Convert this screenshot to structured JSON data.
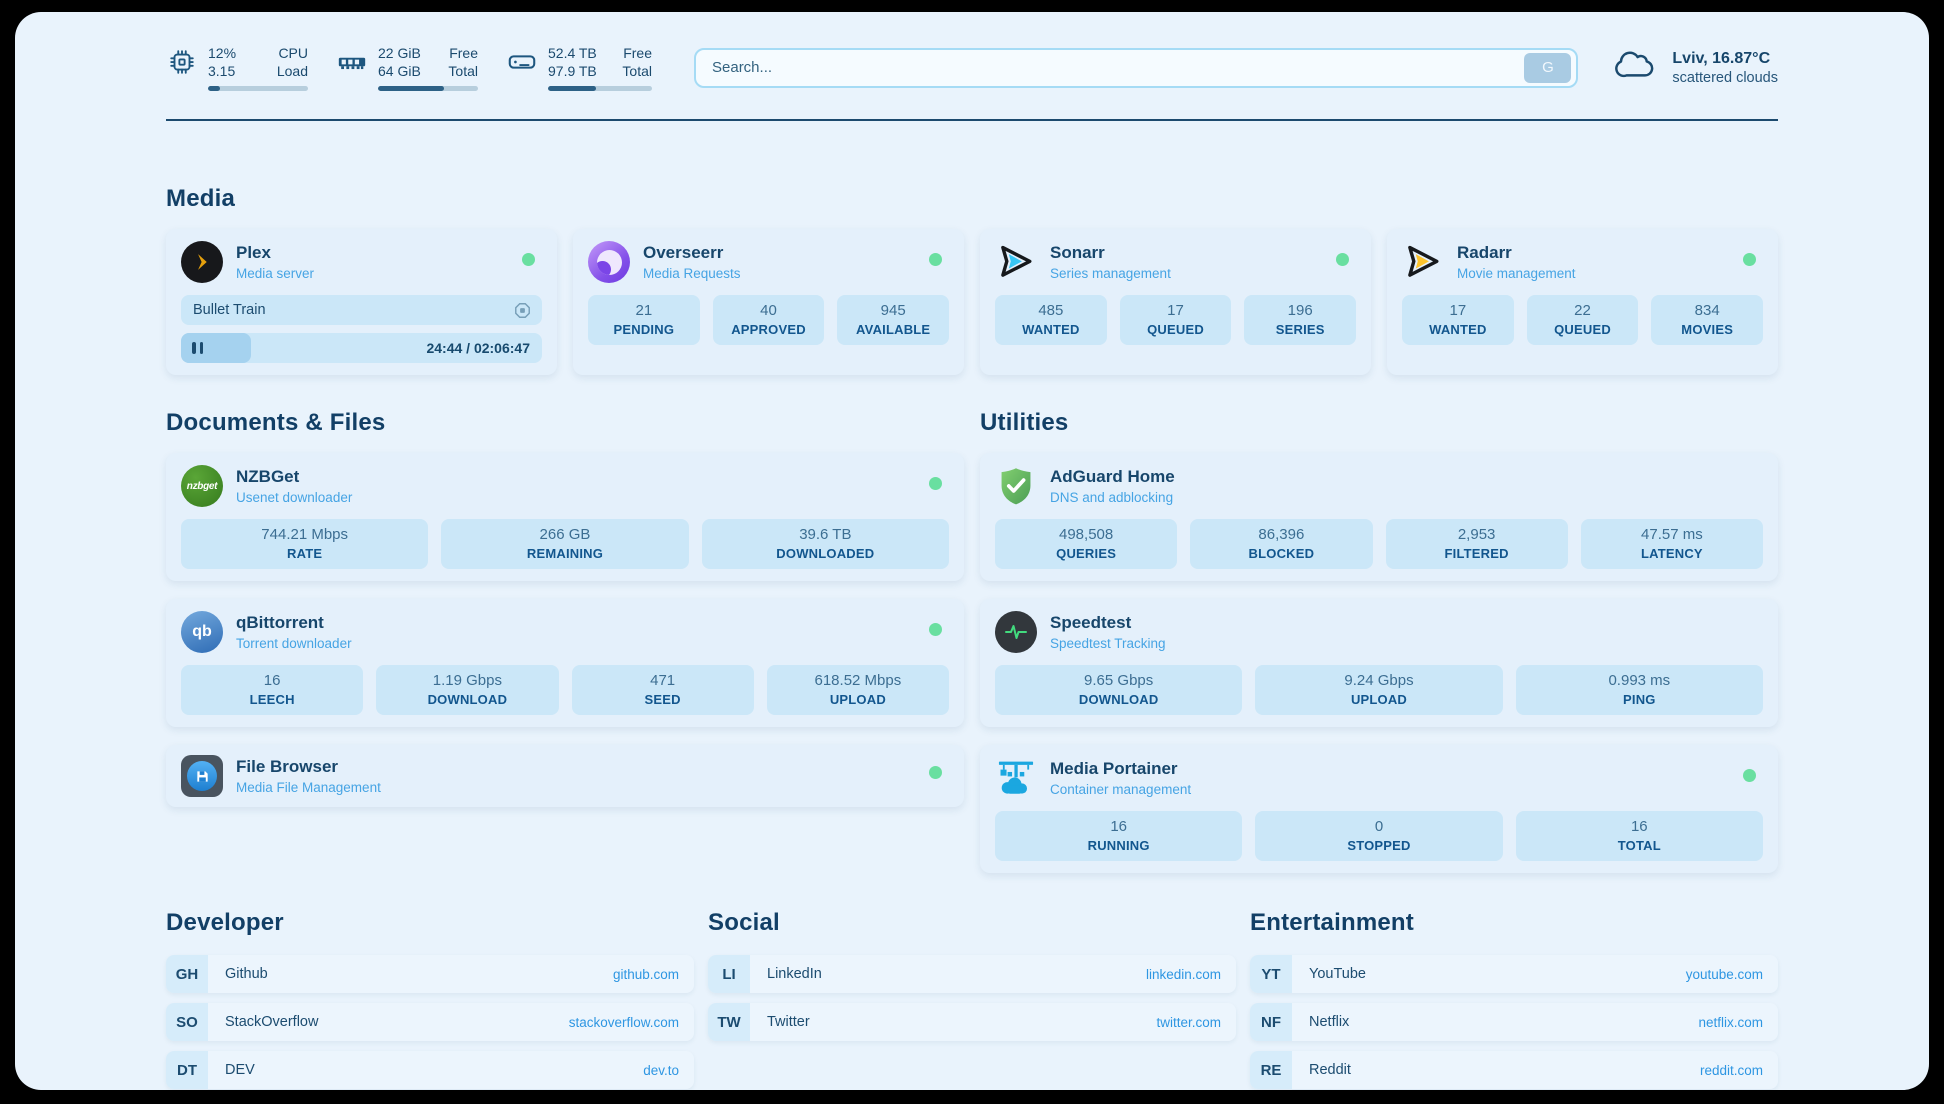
{
  "header": {
    "system": [
      {
        "icon": "cpu-icon",
        "line1_value": "12%",
        "line1_label": "CPU",
        "line2_value": "3.15",
        "line2_label": "Load",
        "progress_pct": 12
      },
      {
        "icon": "ram-icon",
        "line1_value": "22 GiB",
        "line1_label": "Free",
        "line2_value": "64 GiB",
        "line2_label": "Total",
        "progress_pct": 66
      },
      {
        "icon": "disk-icon",
        "line1_value": "52.4 TB",
        "line1_label": "Free",
        "line2_value": "97.9 TB",
        "line2_label": "Total",
        "progress_pct": 46
      }
    ],
    "search": {
      "placeholder": "Search...",
      "button_label": "G"
    },
    "weather": {
      "summary": "Lviv, 16.87°C",
      "condition": "scattered clouds"
    }
  },
  "media": {
    "title": "Media",
    "plex": {
      "name": "Plex",
      "subtitle": "Media server",
      "online": true,
      "now_playing": "Bullet Train",
      "time": "24:44 / 02:06:47",
      "progress_pct": 19.5
    },
    "overseerr": {
      "name": "Overseerr",
      "subtitle": "Media Requests",
      "online": true,
      "stats": [
        {
          "value": "21",
          "label": "PENDING"
        },
        {
          "value": "40",
          "label": "APPROVED"
        },
        {
          "value": "945",
          "label": "AVAILABLE"
        }
      ]
    },
    "sonarr": {
      "name": "Sonarr",
      "subtitle": "Series management",
      "online": true,
      "stats": [
        {
          "value": "485",
          "label": "WANTED"
        },
        {
          "value": "17",
          "label": "QUEUED"
        },
        {
          "value": "196",
          "label": "SERIES"
        }
      ]
    },
    "radarr": {
      "name": "Radarr",
      "subtitle": "Movie management",
      "online": true,
      "stats": [
        {
          "value": "17",
          "label": "WANTED"
        },
        {
          "value": "22",
          "label": "QUEUED"
        },
        {
          "value": "834",
          "label": "MOVIES"
        }
      ]
    }
  },
  "documents": {
    "title": "Documents & Files",
    "nzbget": {
      "name": "NZBGet",
      "subtitle": "Usenet downloader",
      "icon_text": "nzbget",
      "online": true,
      "stats": [
        {
          "value": "744.21 Mbps",
          "label": "RATE"
        },
        {
          "value": "266 GB",
          "label": "REMAINING"
        },
        {
          "value": "39.6 TB",
          "label": "DOWNLOADED"
        }
      ]
    },
    "qbittorrent": {
      "name": "qBittorrent",
      "subtitle": "Torrent downloader",
      "icon_text": "qb",
      "online": true,
      "stats": [
        {
          "value": "16",
          "label": "LEECH"
        },
        {
          "value": "1.19 Gbps",
          "label": "DOWNLOAD"
        },
        {
          "value": "471",
          "label": "SEED"
        },
        {
          "value": "618.52 Mbps",
          "label": "UPLOAD"
        }
      ]
    },
    "filebrowser": {
      "name": "File Browser",
      "subtitle": "Media File Management",
      "online": true
    }
  },
  "utilities": {
    "title": "Utilities",
    "adguard": {
      "name": "AdGuard Home",
      "subtitle": "DNS and adblocking",
      "stats": [
        {
          "value": "498,508",
          "label": "QUERIES"
        },
        {
          "value": "86,396",
          "label": "BLOCKED"
        },
        {
          "value": "2,953",
          "label": "FILTERED"
        },
        {
          "value": "47.57 ms",
          "label": "LATENCY"
        }
      ]
    },
    "speedtest": {
      "name": "Speedtest",
      "subtitle": "Speedtest Tracking",
      "stats": [
        {
          "value": "9.65 Gbps",
          "label": "DOWNLOAD"
        },
        {
          "value": "9.24 Gbps",
          "label": "UPLOAD"
        },
        {
          "value": "0.993 ms",
          "label": "PING"
        }
      ]
    },
    "portainer": {
      "name": "Media Portainer",
      "subtitle": "Container management",
      "online": true,
      "stats": [
        {
          "value": "16",
          "label": "RUNNING"
        },
        {
          "value": "0",
          "label": "STOPPED"
        },
        {
          "value": "16",
          "label": "TOTAL"
        }
      ]
    }
  },
  "bookmarks": [
    {
      "title": "Developer",
      "links": [
        {
          "abbr": "GH",
          "name": "Github",
          "url": "github.com"
        },
        {
          "abbr": "SO",
          "name": "StackOverflow",
          "url": "stackoverflow.com"
        },
        {
          "abbr": "DT",
          "name": "DEV",
          "url": "dev.to"
        }
      ]
    },
    {
      "title": "Social",
      "links": [
        {
          "abbr": "LI",
          "name": "LinkedIn",
          "url": "linkedin.com"
        },
        {
          "abbr": "TW",
          "name": "Twitter",
          "url": "twitter.com"
        }
      ]
    },
    {
      "title": "Entertainment",
      "links": [
        {
          "abbr": "YT",
          "name": "YouTube",
          "url": "youtube.com"
        },
        {
          "abbr": "NF",
          "name": "Netflix",
          "url": "netflix.com"
        },
        {
          "abbr": "RE",
          "name": "Reddit",
          "url": "reddit.com"
        }
      ]
    }
  ],
  "colors": {
    "page_bg": "#e9f3fc",
    "card_bg": "#e4f0fb",
    "tile_bg": "#cbe7f8",
    "navy_text": "#17466b",
    "label_blue": "#12568e",
    "link_blue": "#2e96e2",
    "subtitle_blue": "#46a4e4",
    "online_green": "#69dfa0",
    "bar_fill": "#2d6186"
  }
}
